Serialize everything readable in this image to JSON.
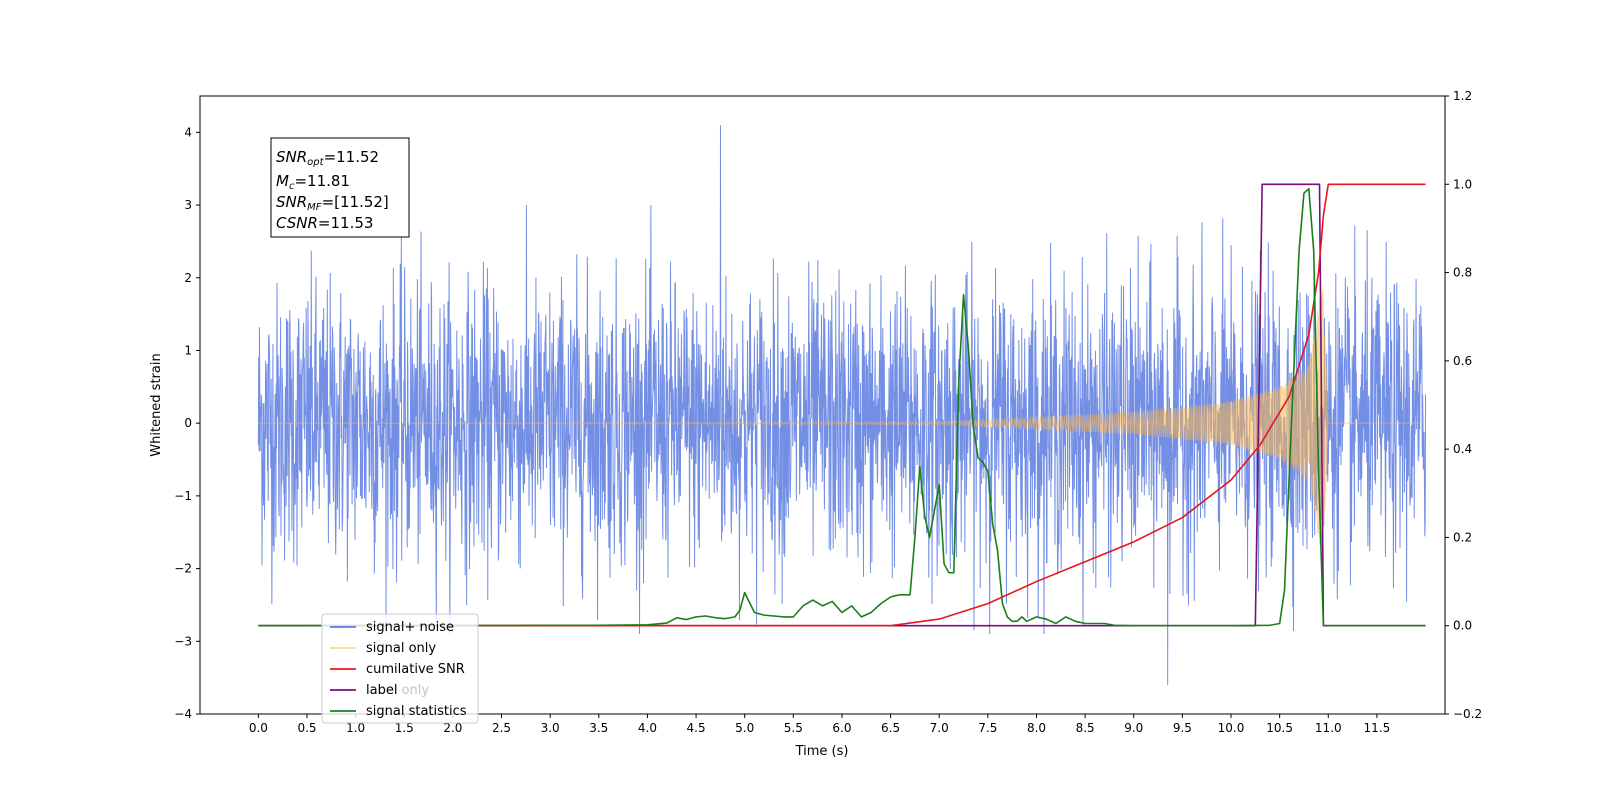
{
  "chart_data": {
    "type": "line",
    "xlabel": "Time (s)",
    "ylabel_left": "Whitened strain",
    "ylabel_right": "",
    "xlim": [
      -0.6,
      12.2
    ],
    "ylim_left": [
      -4,
      4.5
    ],
    "ylim_right": [
      -0.2,
      1.2
    ],
    "x_ticks": [
      0.0,
      0.5,
      1.0,
      1.5,
      2.0,
      2.5,
      3.0,
      3.5,
      4.0,
      4.5,
      5.0,
      5.5,
      6.0,
      6.5,
      7.0,
      7.5,
      8.0,
      8.5,
      9.0,
      9.5,
      10.0,
      10.5,
      11.0,
      11.5
    ],
    "x_tick_labels": [
      "0.0",
      "0.5",
      "1.0",
      "1.5",
      "2.0",
      "2.5",
      "3.0",
      "3.5",
      "4.0",
      "4.5",
      "5.0",
      "5.5",
      "6.0",
      "6.5",
      "7.0",
      "7.5",
      "8.0",
      "8.5",
      "9.0",
      "9.5",
      "10.0",
      "10.5",
      "11.0",
      "11.5"
    ],
    "y_left_ticks": [
      -4,
      -3,
      -2,
      -1,
      0,
      1,
      2,
      3,
      4
    ],
    "y_left_tick_labels": [
      "−4",
      "−3",
      "−2",
      "−1",
      "0",
      "1",
      "2",
      "3",
      "4"
    ],
    "y_right_ticks": [
      -0.2,
      0.0,
      0.2,
      0.4,
      0.6,
      0.8,
      1.0,
      1.2
    ],
    "y_right_tick_labels": [
      "−0.2",
      "0.0",
      "0.2",
      "0.4",
      "0.6",
      "0.8",
      "1.0",
      "1.2"
    ],
    "annotation_lines": [
      {
        "base": "SNR",
        "sub": "opt",
        "rest": "=11.52"
      },
      {
        "base": "M",
        "sub": "c",
        "rest": "=11.81"
      },
      {
        "base": "SNR",
        "sub": "MF",
        "rest": "=[11.52]"
      },
      {
        "base": "CSNR",
        "sub": "",
        "rest": "=11.53"
      }
    ],
    "legend_position": "lower-left",
    "series": [
      {
        "name": "signal+ noise",
        "color": "#5b7be0",
        "axis": "left",
        "description_values": {
          "time_range": [
            0.0,
            12.0
          ],
          "typical_amplitude": 1.6,
          "max": 4.1,
          "min": -3.6
        }
      },
      {
        "name": "signal only",
        "color": "#ffb84d",
        "axis": "left",
        "chirp_envelope": {
          "x": [
            0.0,
            7.0,
            8.0,
            9.0,
            10.0,
            10.5,
            10.8,
            10.95,
            11.0,
            12.0
          ],
          "amplitude": [
            0.0,
            0.02,
            0.08,
            0.15,
            0.3,
            0.5,
            0.8,
            2.0,
            0.0,
            0.0
          ]
        }
      },
      {
        "name": "cumilative SNR",
        "color": "#e8161b",
        "axis": "right",
        "x": [
          0.0,
          6.5,
          7.0,
          7.5,
          8.0,
          8.5,
          9.0,
          9.5,
          10.0,
          10.3,
          10.6,
          10.8,
          10.9,
          10.95,
          11.0,
          12.0
        ],
        "values": [
          0.0,
          0.0,
          0.015,
          0.05,
          0.1,
          0.145,
          0.19,
          0.245,
          0.33,
          0.41,
          0.52,
          0.66,
          0.8,
          0.93,
          1.0,
          1.0
        ]
      },
      {
        "name": "label",
        "color": "#7a0f7a",
        "axis": "right",
        "x": [
          0.0,
          10.25,
          10.32,
          10.91,
          10.95,
          12.0
        ],
        "values": [
          0.0,
          0.0,
          1.0,
          1.0,
          0.0,
          0.0
        ]
      },
      {
        "name": "signal statistics",
        "color": "#1a7f1a",
        "axis": "right",
        "x": [
          0.0,
          3.5,
          4.0,
          4.2,
          4.3,
          4.4,
          4.5,
          4.6,
          4.7,
          4.8,
          4.9,
          4.95,
          5.0,
          5.1,
          5.2,
          5.4,
          5.5,
          5.6,
          5.7,
          5.8,
          5.9,
          6.0,
          6.1,
          6.2,
          6.3,
          6.4,
          6.5,
          6.55,
          6.6,
          6.7,
          6.75,
          6.8,
          6.85,
          6.9,
          7.0,
          7.05,
          7.1,
          7.15,
          7.2,
          7.25,
          7.3,
          7.35,
          7.4,
          7.45,
          7.5,
          7.55,
          7.6,
          7.65,
          7.7,
          7.75,
          7.8,
          7.85,
          7.9,
          8.0,
          8.1,
          8.2,
          8.3,
          8.4,
          8.5,
          8.6,
          8.7,
          8.8,
          9.0,
          10.0,
          10.4,
          10.5,
          10.55,
          10.6,
          10.65,
          10.7,
          10.75,
          10.8,
          10.85,
          10.9,
          10.95,
          11.0,
          12.0
        ],
        "values": [
          0.0,
          0.001,
          0.002,
          0.006,
          0.018,
          0.014,
          0.02,
          0.022,
          0.018,
          0.016,
          0.02,
          0.035,
          0.075,
          0.03,
          0.024,
          0.02,
          0.02,
          0.045,
          0.058,
          0.045,
          0.055,
          0.03,
          0.045,
          0.02,
          0.03,
          0.05,
          0.065,
          0.068,
          0.07,
          0.07,
          0.2,
          0.36,
          0.25,
          0.2,
          0.32,
          0.14,
          0.12,
          0.12,
          0.55,
          0.75,
          0.63,
          0.45,
          0.38,
          0.37,
          0.35,
          0.23,
          0.17,
          0.05,
          0.02,
          0.01,
          0.01,
          0.02,
          0.01,
          0.02,
          0.015,
          0.005,
          0.02,
          0.01,
          0.005,
          0.005,
          0.005,
          0.001,
          0.0,
          0.0,
          0.001,
          0.005,
          0.08,
          0.35,
          0.6,
          0.85,
          0.98,
          0.99,
          0.85,
          0.35,
          0.0,
          0.0,
          0.0
        ]
      }
    ],
    "legend_labels": [
      "signal+ noise",
      "signal only",
      "cumilative SNR",
      "label",
      "signal statistics"
    ],
    "legend_overlap_text": [
      " ",
      " ",
      " ",
      "label only",
      " "
    ]
  }
}
